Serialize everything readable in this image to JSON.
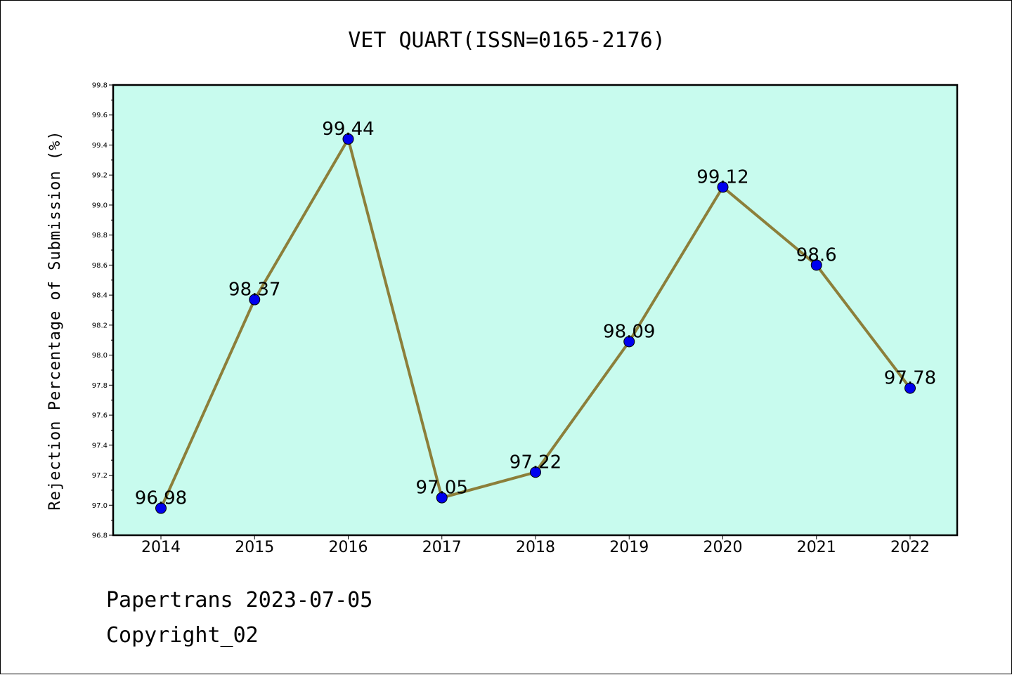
{
  "chart_data": {
    "type": "line",
    "title": "VET QUART(ISSN=0165-2176)",
    "xlabel": "",
    "ylabel": "Rejection Percentage of Submission (%)",
    "categories": [
      "2014",
      "2015",
      "2016",
      "2017",
      "2018",
      "2019",
      "2020",
      "2021",
      "2022"
    ],
    "series": [
      {
        "values": [
          96.98,
          98.37,
          99.44,
          97.05,
          97.22,
          98.09,
          99.12,
          98.6,
          97.78
        ],
        "labels": [
          "96.98",
          "98.37",
          "99.44",
          "97.05",
          "97.22",
          "98.09",
          "99.12",
          "98.6",
          "97.78"
        ],
        "line_color": "#8c7f3a",
        "marker_color": "#0000ee"
      }
    ],
    "ylim": [
      96.8,
      99.8
    ],
    "yticks": [
      "96.8",
      "97.0",
      "97.2",
      "97.4",
      "97.6",
      "97.8",
      "98.0",
      "98.2",
      "98.4",
      "98.6",
      "98.8",
      "99.0",
      "99.2",
      "99.4",
      "99.6",
      "99.8"
    ],
    "plot_background": "#c8fbee",
    "grid": false,
    "legend": "none"
  },
  "footer": {
    "line1": "Papertrans 2023-07-05",
    "line2": "Copyright_02"
  }
}
